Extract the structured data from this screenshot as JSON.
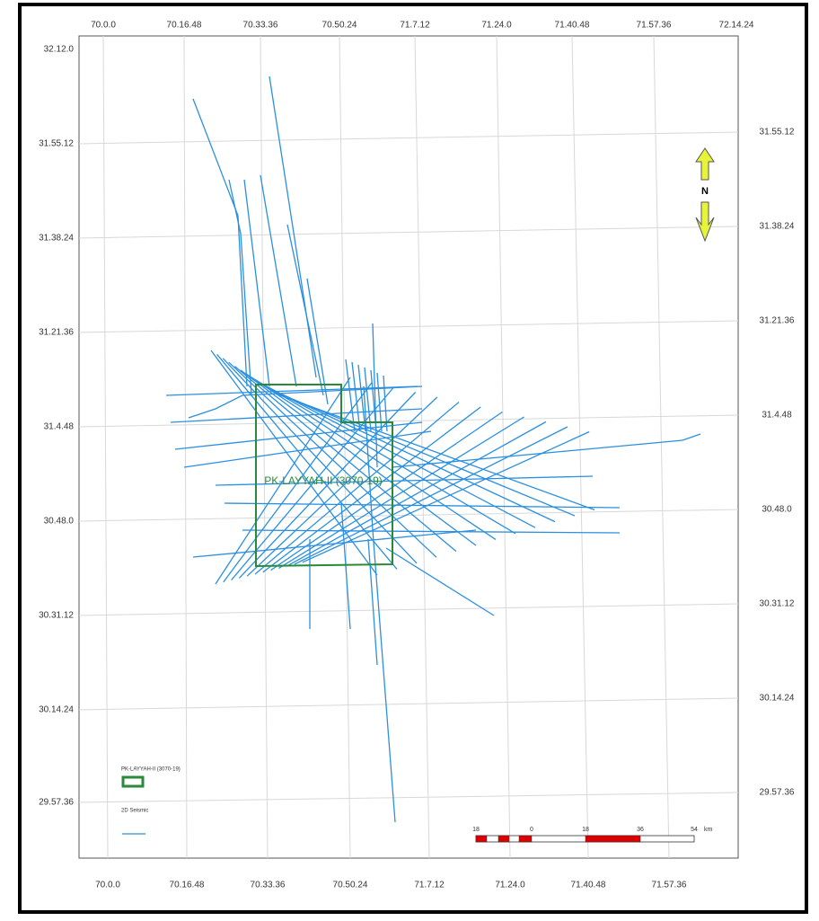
{
  "map": {
    "top_labels": [
      "70.0.0",
      "70.16.48",
      "70.33.36",
      "70.50.24",
      "71.7.12",
      "71.24.0",
      "71.40.48",
      "71.57.36",
      "72.14.24"
    ],
    "bottom_labels": [
      "70.0.0",
      "70.16.48",
      "70.33.36",
      "70.50.24",
      "71.7.12",
      "71.24.0",
      "71.40.48",
      "71.57.36"
    ],
    "left_labels": [
      "32.12.0",
      "31.55.12",
      "31.38.24",
      "31.21.36",
      "31.4.48",
      "30.48.0",
      "30.31.12",
      "30.14.24",
      "29.57.36"
    ],
    "right_labels": [
      "31.55.12",
      "31.38.24",
      "31.21.36",
      "31.4.48",
      "30.48.0",
      "30.31.12",
      "30.14.24",
      "29.57.36"
    ],
    "north": "N",
    "block_label": "PK-LAYYAH-II (3070-19)",
    "legend": [
      {
        "label": "PK-LAYYAH-II (3070-19)"
      },
      {
        "label": "2D Seismic"
      }
    ],
    "scale": {
      "labels": [
        "18",
        "0",
        "18",
        "36",
        "54"
      ],
      "unit": "km"
    }
  }
}
